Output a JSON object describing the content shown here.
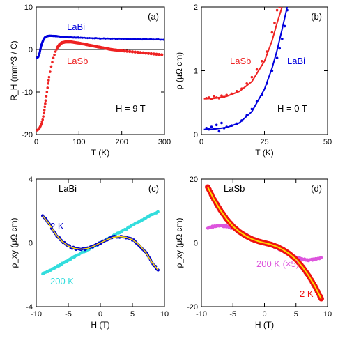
{
  "chart_data": [
    {
      "type": "scatter",
      "panel_label": "(a)",
      "xlabel": "T (K)",
      "ylabel": "R_H (mm^3 / C)",
      "xlim": [
        0,
        300
      ],
      "ylim": [
        -20,
        10
      ],
      "xticks": [
        0,
        100,
        200,
        300
      ],
      "yticks": [
        -20,
        -10,
        0,
        10
      ],
      "annotation": "H = 9 T",
      "zero_line": true,
      "series": [
        {
          "name": "LaBi",
          "color": "#0000dd",
          "x": [
            2,
            5,
            8,
            10,
            12,
            14,
            16,
            18,
            20,
            25,
            30,
            40,
            50,
            75,
            100,
            150,
            200,
            250,
            300
          ],
          "y": [
            -2.0,
            -1.7,
            -0.8,
            0.2,
            1.0,
            1.6,
            2.1,
            2.5,
            2.8,
            3.1,
            3.2,
            3.2,
            3.1,
            2.9,
            2.8,
            2.6,
            2.5,
            2.4,
            2.3
          ]
        },
        {
          "name": "LaSb",
          "color": "#ee2222",
          "x": [
            2,
            5,
            8,
            10,
            12,
            15,
            18,
            20,
            22,
            25,
            28,
            30,
            35,
            40,
            45,
            50,
            55,
            60,
            70,
            80,
            100,
            125,
            150,
            175,
            200,
            250,
            300
          ],
          "y": [
            -19,
            -18.8,
            -18.4,
            -18,
            -17.5,
            -16.5,
            -15,
            -13.5,
            -12,
            -10,
            -8,
            -6.5,
            -4,
            -2,
            -0.5,
            0.5,
            1.2,
            1.6,
            1.8,
            1.8,
            1.5,
            1.0,
            0.5,
            0,
            -0.3,
            -0.8,
            -1.3
          ]
        }
      ]
    },
    {
      "type": "scatter",
      "panel_label": "(b)",
      "xlabel": "T (K)",
      "ylabel": "ρ (μΩ cm)",
      "xlim": [
        0,
        50
      ],
      "ylim": [
        0,
        2
      ],
      "xticks": [
        0,
        25,
        50
      ],
      "yticks": [
        0,
        1,
        2
      ],
      "annotation": "H = 0 T",
      "series": [
        {
          "name": "LaSb",
          "color": "#ee2222",
          "x": [
            2,
            3,
            4,
            5,
            6,
            7,
            8,
            9,
            10,
            12,
            14,
            16,
            18,
            20,
            22,
            24,
            26,
            28,
            29,
            30,
            31
          ],
          "y": [
            0.57,
            0.58,
            0.56,
            0.6,
            0.58,
            0.57,
            0.61,
            0.59,
            0.62,
            0.64,
            0.68,
            0.72,
            0.8,
            0.9,
            1.02,
            1.15,
            1.3,
            1.6,
            1.75,
            1.95,
            2.0
          ],
          "fit_x": [
            1,
            5,
            10,
            15,
            20,
            25,
            28,
            30,
            32
          ],
          "fit_y": [
            0.56,
            0.567,
            0.6,
            0.675,
            0.83,
            1.15,
            1.47,
            1.75,
            2.0
          ]
        },
        {
          "name": "LaBi",
          "color": "#0000dd",
          "x": [
            2,
            3,
            4,
            5,
            6,
            7,
            8,
            9,
            10,
            12,
            14,
            16,
            18,
            20,
            22,
            24,
            26,
            28,
            30,
            31,
            32,
            33,
            34
          ],
          "y": [
            0.1,
            0.08,
            0.12,
            0.09,
            0.15,
            0.05,
            0.18,
            0.1,
            0.12,
            0.14,
            0.17,
            0.22,
            0.3,
            0.4,
            0.52,
            0.62,
            0.8,
            1.0,
            1.2,
            1.35,
            1.5,
            1.7,
            1.95
          ],
          "fit_x": [
            1,
            5,
            10,
            15,
            20,
            25,
            28,
            30,
            32,
            34
          ],
          "fit_y": [
            0.08,
            0.085,
            0.11,
            0.18,
            0.36,
            0.71,
            1.04,
            1.32,
            1.65,
            2.0
          ]
        }
      ]
    },
    {
      "type": "scatter",
      "panel_label": "(c)",
      "material": "LaBi",
      "xlabel": "H (T)",
      "ylabel": "ρ_xy (μΩ cm)",
      "xlim": [
        -10,
        10
      ],
      "ylim": [
        -4,
        4
      ],
      "xticks": [
        -10,
        -5,
        0,
        5,
        10
      ],
      "yticks": [
        -4,
        0,
        4
      ],
      "series": [
        {
          "name": "2 K",
          "color": "#0000cc",
          "fit_color": "#ffdd00",
          "x": [
            -9,
            -8,
            -7,
            -6,
            -5,
            -4,
            -3,
            -2,
            -1,
            0,
            1,
            2,
            3,
            4,
            5,
            6,
            7,
            8,
            9
          ],
          "y": [
            1.7,
            1.2,
            0.55,
            0.1,
            -0.2,
            -0.35,
            -0.4,
            -0.35,
            -0.2,
            0,
            0.2,
            0.35,
            0.4,
            0.35,
            0.2,
            -0.1,
            -0.55,
            -1.2,
            -1.7
          ]
        },
        {
          "name": "200 K",
          "color": "#33dddd",
          "x": [
            -9,
            -8,
            -7,
            -6,
            -5,
            -4,
            -3,
            -2,
            -1,
            0,
            1,
            2,
            3,
            4,
            5,
            6,
            7,
            8,
            9
          ],
          "y": [
            -1.95,
            -1.75,
            -1.55,
            -1.3,
            -1.1,
            -0.85,
            -0.65,
            -0.45,
            -0.22,
            0,
            0.22,
            0.45,
            0.65,
            0.85,
            1.1,
            1.3,
            1.55,
            1.75,
            1.95
          ]
        }
      ]
    },
    {
      "type": "scatter",
      "panel_label": "(d)",
      "material": "LaSb",
      "xlabel": "H (T)",
      "ylabel": "ρ_xy (μΩ cm)",
      "xlim": [
        -10,
        10
      ],
      "ylim": [
        -20,
        20
      ],
      "xticks": [
        -10,
        -5,
        0,
        5,
        10
      ],
      "yticks": [
        -20,
        0,
        20
      ],
      "series": [
        {
          "name": "2 K",
          "color": "#ee1111",
          "fit_color": "#ffdd00",
          "x": [
            -9,
            -8,
            -7,
            -6,
            -5,
            -4,
            -3,
            -2,
            -1,
            0,
            1,
            2,
            3,
            4,
            5,
            6,
            7,
            8,
            9
          ],
          "y": [
            17.5,
            13.6,
            10.3,
            7.5,
            5.2,
            3.5,
            2.2,
            1.2,
            0.5,
            0,
            -0.5,
            -1.2,
            -2.2,
            -3.5,
            -5.2,
            -7.5,
            -10.3,
            -13.6,
            -17.5
          ]
        },
        {
          "name": "200 K (×5)",
          "color": "#dd55dd",
          "x": [
            -9,
            -8,
            -7,
            -6,
            -5,
            -4,
            -3,
            -2,
            -1,
            0,
            1,
            2,
            3,
            4,
            5,
            6,
            7,
            8,
            9
          ],
          "y": [
            4.6,
            5.2,
            5.4,
            5.2,
            4.6,
            3.7,
            2.6,
            1.6,
            0.7,
            0,
            -0.7,
            -1.6,
            -2.6,
            -3.7,
            -4.6,
            -5.2,
            -5.4,
            -5.2,
            -4.6
          ]
        }
      ]
    }
  ]
}
